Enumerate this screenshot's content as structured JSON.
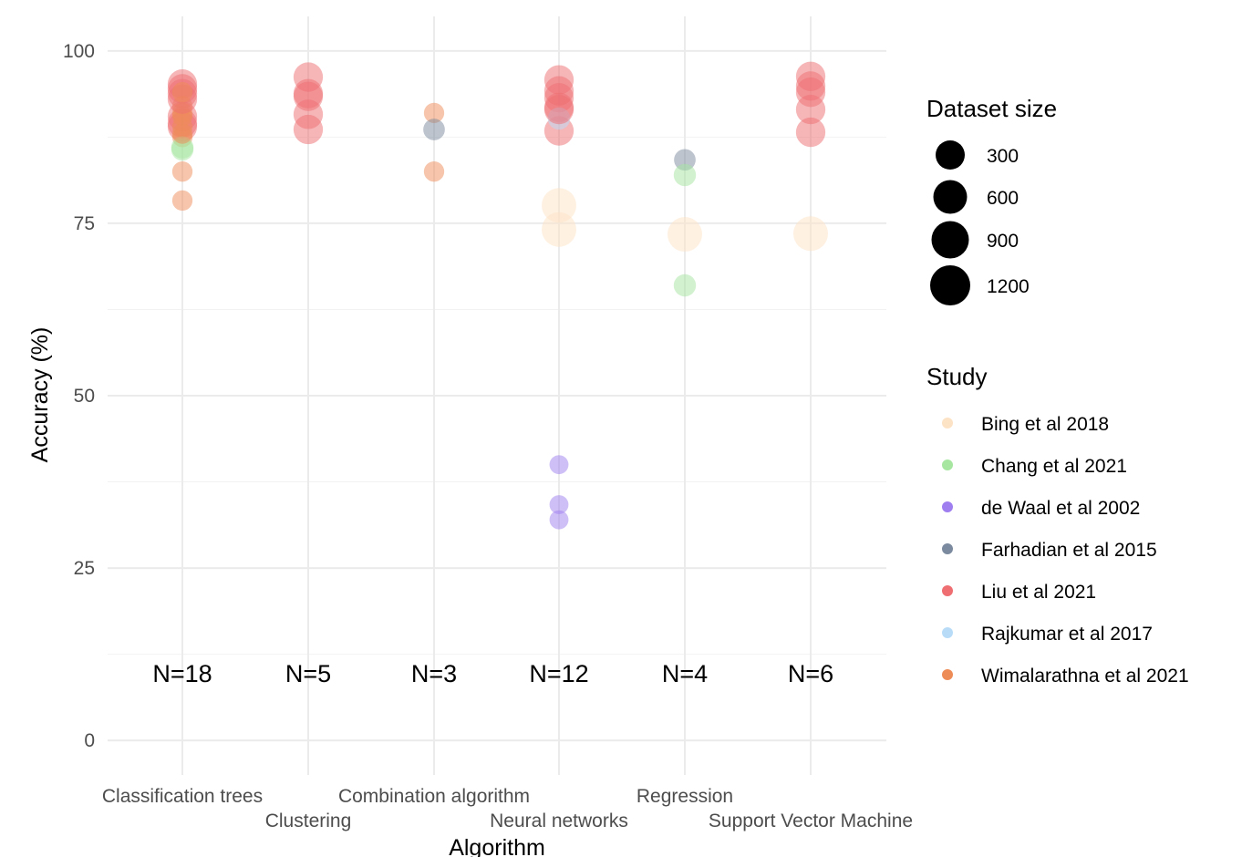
{
  "chart_data": {
    "type": "scatter",
    "xlabel": "Algorithm",
    "ylabel": "Accuracy (%)",
    "ylim": [
      -5,
      105
    ],
    "yticks": [
      0,
      25,
      50,
      75,
      100
    ],
    "grid": true,
    "legend_placement": "right",
    "categories": [
      "Classification trees",
      "Clustering",
      "Combination algorithm",
      "Neural networks",
      "Regression",
      "Support Vector Machine"
    ],
    "counts": [
      "N=18",
      "N=5",
      "N=3",
      "N=12",
      "N=4",
      "N=6"
    ],
    "size_legend": {
      "title": "Dataset size",
      "values": [
        300,
        600,
        900,
        1200
      ],
      "labels": [
        "300",
        "600",
        "900",
        "1200"
      ]
    },
    "color_legend": {
      "title": "Study",
      "items": [
        {
          "name": "Bing et al 2018",
          "color": "#fde3c5"
        },
        {
          "name": "Chang et al 2021",
          "color": "#a6e6a0"
        },
        {
          "name": "de  Waal et al 2002",
          "color": "#9f7ff0"
        },
        {
          "name": "Farhadian et al 2015",
          "color": "#7b8a9e"
        },
        {
          "name": "Liu et al 2021",
          "color": "#ee6e72"
        },
        {
          "name": "Rajkumar et al 2017",
          "color": "#b8dcf8"
        },
        {
          "name": "Wimalarathna et al 2021",
          "color": "#ee8c58"
        }
      ]
    },
    "points": [
      {
        "cat": 0,
        "y": 95.2,
        "study": "Liu et al 2021",
        "size": 1000
      },
      {
        "cat": 0,
        "y": 94.5,
        "study": "Liu et al 2021",
        "size": 1000
      },
      {
        "cat": 0,
        "y": 93.8,
        "study": "Liu et al 2021",
        "size": 1000
      },
      {
        "cat": 0,
        "y": 90.5,
        "study": "Liu et al 2021",
        "size": 1000
      },
      {
        "cat": 0,
        "y": 89.5,
        "study": "Liu et al 2021",
        "size": 1000
      },
      {
        "cat": 0,
        "y": 89.0,
        "study": "Liu et al 2021",
        "size": 1000
      },
      {
        "cat": 0,
        "y": 92.0,
        "study": "Wimalarathna et al 2021",
        "size": 300
      },
      {
        "cat": 0,
        "y": 90.5,
        "study": "Wimalarathna et al 2021",
        "size": 300
      },
      {
        "cat": 0,
        "y": 89.0,
        "study": "Wimalarathna et al 2021",
        "size": 300
      },
      {
        "cat": 0,
        "y": 87.5,
        "study": "Wimalarathna et al 2021",
        "size": 300
      },
      {
        "cat": 0,
        "y": 82.5,
        "study": "Wimalarathna et al 2021",
        "size": 300
      },
      {
        "cat": 0,
        "y": 78.3,
        "study": "Wimalarathna et al 2021",
        "size": 300
      },
      {
        "cat": 0,
        "y": 86.0,
        "study": "Chang et al 2021",
        "size": 450
      },
      {
        "cat": 0,
        "y": 85.7,
        "study": "Chang et al 2021",
        "size": 450
      },
      {
        "cat": 0,
        "y": 91.0,
        "study": "Wimalarathna et al 2021",
        "size": 300
      },
      {
        "cat": 0,
        "y": 88.0,
        "study": "Wimalarathna et al 2021",
        "size": 300
      },
      {
        "cat": 0,
        "y": 93.0,
        "study": "Liu et al 2021",
        "size": 1000
      },
      {
        "cat": 0,
        "y": 94.0,
        "study": "Wimalarathna et al 2021",
        "size": 300
      },
      {
        "cat": 1,
        "y": 96.2,
        "study": "Liu et al 2021",
        "size": 1000
      },
      {
        "cat": 1,
        "y": 93.8,
        "study": "Liu et al 2021",
        "size": 1000
      },
      {
        "cat": 1,
        "y": 93.4,
        "study": "Liu et al 2021",
        "size": 1000
      },
      {
        "cat": 1,
        "y": 90.8,
        "study": "Liu et al 2021",
        "size": 1000
      },
      {
        "cat": 1,
        "y": 88.6,
        "study": "Liu et al 2021",
        "size": 1000
      },
      {
        "cat": 2,
        "y": 91.0,
        "study": "Wimalarathna et al 2021",
        "size": 300
      },
      {
        "cat": 2,
        "y": 88.6,
        "study": "Farhadian et al 2015",
        "size": 400
      },
      {
        "cat": 2,
        "y": 82.5,
        "study": "Wimalarathna et al 2021",
        "size": 300
      },
      {
        "cat": 3,
        "y": 95.8,
        "study": "Liu et al 2021",
        "size": 1000
      },
      {
        "cat": 3,
        "y": 94.2,
        "study": "Liu et al 2021",
        "size": 1000
      },
      {
        "cat": 3,
        "y": 93.2,
        "study": "Liu et al 2021",
        "size": 1000
      },
      {
        "cat": 3,
        "y": 91.8,
        "study": "Liu et al 2021",
        "size": 1000
      },
      {
        "cat": 3,
        "y": 88.4,
        "study": "Liu et al 2021",
        "size": 1000
      },
      {
        "cat": 3,
        "y": 90.2,
        "study": "Rajkumar et al 2017",
        "size": 450
      },
      {
        "cat": 3,
        "y": 77.6,
        "study": "Bing et al 2018",
        "size": 1400
      },
      {
        "cat": 3,
        "y": 74.1,
        "study": "Bing et al 2018",
        "size": 1400
      },
      {
        "cat": 3,
        "y": 40.0,
        "study": "de  Waal et al 2002",
        "size": 200
      },
      {
        "cat": 3,
        "y": 34.2,
        "study": "de  Waal et al 2002",
        "size": 200
      },
      {
        "cat": 3,
        "y": 32.0,
        "study": "de  Waal et al 2002",
        "size": 200
      },
      {
        "cat": 3,
        "y": 91.5,
        "study": "Liu et al 2021",
        "size": 1000
      },
      {
        "cat": 4,
        "y": 84.2,
        "study": "Farhadian et al 2015",
        "size": 400
      },
      {
        "cat": 4,
        "y": 82.0,
        "study": "Chang et al 2021",
        "size": 450
      },
      {
        "cat": 4,
        "y": 73.4,
        "study": "Bing et al 2018",
        "size": 1400
      },
      {
        "cat": 4,
        "y": 66.0,
        "study": "Chang et al 2021",
        "size": 450
      },
      {
        "cat": 5,
        "y": 96.3,
        "study": "Liu et al 2021",
        "size": 1000
      },
      {
        "cat": 5,
        "y": 94.9,
        "study": "Liu et al 2021",
        "size": 1000
      },
      {
        "cat": 5,
        "y": 94.0,
        "study": "Liu et al 2021",
        "size": 1000
      },
      {
        "cat": 5,
        "y": 91.5,
        "study": "Liu et al 2021",
        "size": 1000
      },
      {
        "cat": 5,
        "y": 88.2,
        "study": "Liu et al 2021",
        "size": 1000
      },
      {
        "cat": 5,
        "y": 73.5,
        "study": "Bing et al 2018",
        "size": 1400
      }
    ]
  }
}
